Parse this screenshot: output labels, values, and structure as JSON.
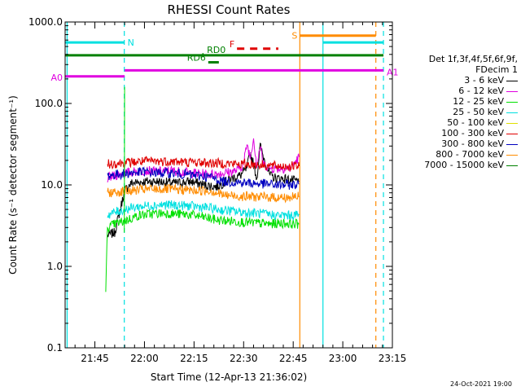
{
  "chart_data": {
    "type": "line",
    "title": "RHESSI Count Rates",
    "xlabel": "Start Time (12-Apr-13 21:36:02)",
    "ylabel": "Count Rate (s⁻¹ detector segment⁻¹)",
    "yscale": "log",
    "ylim": [
      0.1,
      1000
    ],
    "yticks": [
      "0.1",
      "1.0",
      "10.0",
      "100.0",
      "1000.0"
    ],
    "xlim_minutes": [
      0,
      99
    ],
    "xticks": [
      {
        "m": 9,
        "label": "21:45"
      },
      {
        "m": 24,
        "label": "22:00"
      },
      {
        "m": 39,
        "label": "22:15"
      },
      {
        "m": 54,
        "label": "22:30"
      },
      {
        "m": 69,
        "label": "22:45"
      },
      {
        "m": 84,
        "label": "23:00"
      },
      {
        "m": 99,
        "label": "23:15"
      }
    ],
    "grid": false,
    "legend": {
      "placement": "right",
      "header": [
        "Det 1f,3f,4f,5f,6f,9f,",
        "FDecim 1"
      ],
      "entries": [
        {
          "name": "3 - 6 keV",
          "color": "#000000"
        },
        {
          "name": "6 - 12 keV",
          "color": "#e000e0"
        },
        {
          "name": "12 - 25 keV",
          "color": "#00e000"
        },
        {
          "name": "25 - 50 keV",
          "color": "#00e0e0"
        },
        {
          "name": "50 - 100 keV",
          "color": "#e0e000"
        },
        {
          "name": "100 - 300 keV",
          "color": "#e00000"
        },
        {
          "name": "300 - 800 keV",
          "color": "#0000c0"
        },
        {
          "name": "800 - 7000 keV",
          "color": "#ff8c00"
        },
        {
          "name": "7000 - 15000 keV",
          "color": "#008000"
        }
      ]
    },
    "series": [
      {
        "name": "3 - 6 keV",
        "color": "#000000",
        "t": [
          12.8,
          15,
          18,
          20,
          24,
          28,
          33,
          38,
          42,
          46,
          50,
          53,
          55,
          56,
          57,
          58,
          59,
          60,
          62,
          64,
          66,
          68,
          70.8
        ],
        "y": [
          2.4,
          2.6,
          8.5,
          10.5,
          11,
          11,
          10.5,
          11,
          10,
          9.5,
          12,
          13,
          16,
          25,
          18,
          12,
          30,
          22,
          13,
          12,
          12,
          11.5,
          11
        ]
      },
      {
        "name": "6 - 12 keV",
        "color": "#e000e0",
        "t": [
          12.8,
          15,
          18,
          24,
          28,
          32,
          38,
          44,
          48,
          52,
          54,
          55,
          56,
          57,
          58,
          59,
          60,
          62,
          64,
          66,
          68,
          70.8
        ],
        "y": [
          12,
          13,
          14,
          15,
          14.5,
          15,
          14,
          13.5,
          14,
          15,
          18,
          32,
          22,
          38,
          17,
          30,
          18,
          16,
          16,
          16,
          16,
          22
        ]
      },
      {
        "name": "12 - 25 keV",
        "color": "#00e000",
        "t": [
          12.3,
          12.8,
          15,
          18,
          22,
          26,
          30,
          34,
          38,
          42,
          46,
          50,
          54,
          58,
          62,
          66,
          70.8
        ],
        "y": [
          0.5,
          3.0,
          3.3,
          3.6,
          4.2,
          4.4,
          4.5,
          4.4,
          4.3,
          4.0,
          3.7,
          3.6,
          3.5,
          3.4,
          3.3,
          3.4,
          3.3
        ]
      },
      {
        "name": "25 - 50 keV",
        "color": "#00e0e0",
        "t": [
          12.8,
          15,
          18,
          22,
          26,
          30,
          34,
          38,
          42,
          46,
          50,
          54,
          58,
          62,
          66,
          70.8
        ],
        "y": [
          4.3,
          4.6,
          5.0,
          5.4,
          5.6,
          5.7,
          5.6,
          5.5,
          5.3,
          5.0,
          4.8,
          4.6,
          4.5,
          4.3,
          4.2,
          4.3
        ]
      },
      {
        "name": "300 - 800 keV",
        "color": "#0000c0",
        "t": [
          12.8,
          16,
          20,
          24,
          28,
          32,
          36,
          40,
          44,
          48,
          52,
          56,
          60,
          64,
          68,
          70.8
        ],
        "y": [
          13,
          13.5,
          14,
          14.5,
          14,
          14,
          13.5,
          13,
          12.5,
          11,
          10.8,
          10.5,
          10.3,
          10,
          10,
          10.2
        ]
      },
      {
        "name": "100 - 300 keV",
        "color": "#e00000",
        "t": [
          12.8,
          16,
          20,
          24,
          28,
          32,
          36,
          40,
          44,
          48,
          52,
          56,
          60,
          64,
          68,
          70.8
        ],
        "y": [
          18,
          18.5,
          19,
          19.5,
          19.5,
          19.5,
          19,
          19,
          18.5,
          18.5,
          18,
          18,
          17.5,
          17,
          17,
          17
        ]
      },
      {
        "name": "800 - 7000 keV",
        "color": "#ff8c00",
        "t": [
          12.8,
          16,
          20,
          24,
          28,
          32,
          36,
          40,
          44,
          48,
          52,
          56,
          60,
          64,
          68,
          70.8
        ],
        "y": [
          8.0,
          8.2,
          8.5,
          8.8,
          8.9,
          8.8,
          8.7,
          8.5,
          8.5,
          7.5,
          7.3,
          7.2,
          7.1,
          7.0,
          7.0,
          7.2
        ]
      }
    ],
    "flags": {
      "vertical_lines": [
        {
          "m": 0.6,
          "color": "#00e0e0",
          "style": "solid"
        },
        {
          "m": 17.9,
          "color": "#00e0e0",
          "style": "dashed"
        },
        {
          "m": 71.0,
          "color": "#ff8c00",
          "style": "solid"
        },
        {
          "m": 78.0,
          "color": "#00e0e0",
          "style": "solid"
        },
        {
          "m": 94.0,
          "color": "#ff8c00",
          "style": "dashed"
        },
        {
          "m": 96.3,
          "color": "#00e0e0",
          "style": "dashed"
        }
      ],
      "bars": [
        {
          "label": "N",
          "color": "#00e0e0",
          "y": 560,
          "t0": 0,
          "t1": 17.9,
          "label_pos": "right"
        },
        {
          "label": "N",
          "color": "#00e0e0",
          "y": 560,
          "t0": 78,
          "t1": 96.3,
          "label_pos": "none"
        },
        {
          "label": "S",
          "color": "#ff8c00",
          "y": 680,
          "t0": 71,
          "t1": 94,
          "label_pos": "left"
        },
        {
          "label": "",
          "color": "#008000",
          "y": 390,
          "t0": 0,
          "t1": 96.3,
          "label_pos": "none"
        },
        {
          "label": "RD0",
          "color": "#008000",
          "y": 400,
          "t0": 41.5,
          "t1": 41.9,
          "label_pos": "right"
        },
        {
          "label": "RD6",
          "color": "#008000",
          "y": 320,
          "t0": 43.3,
          "t1": 46.5,
          "label_pos": "left"
        },
        {
          "label": "A0",
          "color": "#e000e0",
          "y": 215,
          "t0": 0,
          "t1": 18.0,
          "label_pos": "left"
        },
        {
          "label": "A1",
          "color": "#e000e0",
          "y": 255,
          "t0": 18.0,
          "t1": 96.3,
          "label_pos": "right"
        },
        {
          "label": "F",
          "color": "#e00000",
          "y": 470,
          "t0": 52,
          "t1": 64.5,
          "label_pos": "left",
          "style": "dashed"
        }
      ]
    }
  },
  "footer": {
    "timestamp": "24-Oct-2021 19:00"
  }
}
